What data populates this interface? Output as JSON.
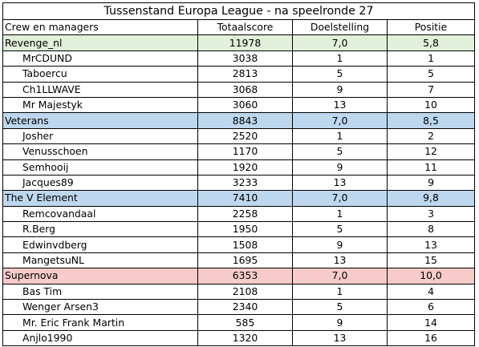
{
  "title": "Tussenstand Europa League  - na speelronde 27",
  "headers": [
    "Crew en managers",
    "Totaalscore",
    "Doelstelling",
    "Positie"
  ],
  "colors": {
    "green": "#e2efda",
    "blue": "#bdd7ee",
    "pink": "#f8cbcb"
  },
  "teams": [
    {
      "name": "Revenge_nl",
      "total": "11978",
      "goal": "7,0",
      "pos": "5,8",
      "color": "green",
      "members": [
        {
          "name": "MrCDUND",
          "total": "3038",
          "goal": "1",
          "pos": "1"
        },
        {
          "name": "Taboercu",
          "total": "2813",
          "goal": "5",
          "pos": "5"
        },
        {
          "name": "Ch1LLWAVE",
          "total": "3068",
          "goal": "9",
          "pos": "7"
        },
        {
          "name": "Mr Majestyk",
          "total": "3060",
          "goal": "13",
          "pos": "10"
        }
      ]
    },
    {
      "name": "Veterans",
      "total": "8843",
      "goal": "7,0",
      "pos": "8,5",
      "color": "blue",
      "members": [
        {
          "name": "Josher",
          "total": "2520",
          "goal": "1",
          "pos": "2"
        },
        {
          "name": "Venusschoen",
          "total": "1170",
          "goal": "5",
          "pos": "12"
        },
        {
          "name": "Semhooij",
          "total": "1920",
          "goal": "9",
          "pos": "11"
        },
        {
          "name": "Jacques89",
          "total": "3233",
          "goal": "13",
          "pos": "9"
        }
      ]
    },
    {
      "name": "The V Element",
      "total": "7410",
      "goal": "7,0",
      "pos": "9,8",
      "color": "blue",
      "members": [
        {
          "name": "Remcovandaal",
          "total": "2258",
          "goal": "1",
          "pos": "3"
        },
        {
          "name": "R.Berg",
          "total": "1950",
          "goal": "5",
          "pos": "8"
        },
        {
          "name": "Edwinvdberg",
          "total": "1508",
          "goal": "9",
          "pos": "13"
        },
        {
          "name": "MangetsuNL",
          "total": "1695",
          "goal": "13",
          "pos": "15"
        }
      ]
    },
    {
      "name": "Supernova",
      "total": "6353",
      "goal": "7,0",
      "pos": "10,0",
      "color": "pink",
      "members": [
        {
          "name": "Bas Tim",
          "total": "2108",
          "goal": "1",
          "pos": "4"
        },
        {
          "name": "Wenger Arsen3",
          "total": "2340",
          "goal": "5",
          "pos": "6"
        },
        {
          "name": "Mr. Eric Frank Martin",
          "total": "585",
          "goal": "9",
          "pos": "14"
        },
        {
          "name": "Anjlo1990",
          "total": "1320",
          "goal": "13",
          "pos": "16"
        }
      ]
    }
  ]
}
